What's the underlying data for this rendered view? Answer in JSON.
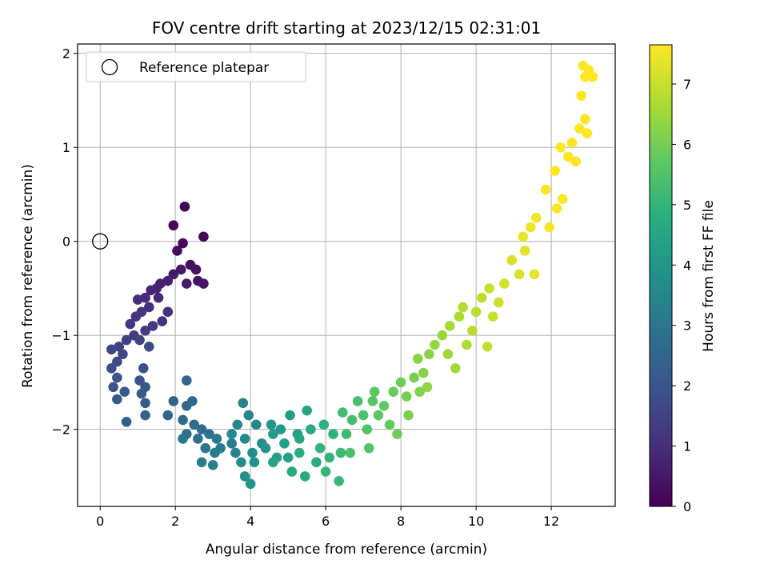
{
  "chart_data": {
    "type": "scatter",
    "title": "FOV centre drift starting at 2023/12/15 02:31:01",
    "xlabel": "Angular distance from reference (arcmin)",
    "ylabel": "Rotation from reference (arcmin)",
    "xlim": [
      -0.6,
      13.7
    ],
    "ylim": [
      -2.82,
      2.1
    ],
    "xticks": [
      0,
      2,
      4,
      6,
      8,
      10,
      12
    ],
    "yticks": [
      -2,
      -1,
      0,
      1,
      2
    ],
    "xtick_labels": [
      "0",
      "2",
      "4",
      "6",
      "8",
      "10",
      "12"
    ],
    "ytick_labels": [
      "−2",
      "−1",
      "0",
      "1",
      "2"
    ],
    "grid": true,
    "colormap": "viridis",
    "colorbar": {
      "label": "Hours from first FF file",
      "range": [
        0,
        7.65
      ],
      "ticks": [
        0,
        1,
        2,
        3,
        4,
        5,
        6,
        7
      ],
      "tick_labels": [
        "0",
        "1",
        "2",
        "3",
        "4",
        "5",
        "6",
        "7"
      ]
    },
    "legend": {
      "position": "top-left",
      "entries": [
        {
          "label": "Reference platepar",
          "marker": "open-circle"
        }
      ]
    },
    "reference_point": {
      "x": 0,
      "y": 0
    },
    "series": [
      {
        "points": [
          [
            2.25,
            0.37,
            0.05
          ],
          [
            2.75,
            0.05,
            0.1
          ],
          [
            1.95,
            0.17,
            0.15
          ],
          [
            2.2,
            -0.02,
            0.2
          ],
          [
            2.05,
            -0.1,
            0.25
          ],
          [
            2.4,
            -0.25,
            0.3
          ],
          [
            2.55,
            -0.3,
            0.35
          ],
          [
            2.6,
            -0.42,
            0.4
          ],
          [
            2.75,
            -0.45,
            0.45
          ],
          [
            2.15,
            -0.3,
            0.5
          ],
          [
            1.95,
            -0.35,
            0.55
          ],
          [
            2.3,
            -0.45,
            0.6
          ],
          [
            1.8,
            -0.42,
            0.65
          ],
          [
            1.6,
            -0.45,
            0.7
          ],
          [
            1.5,
            -0.5,
            0.75
          ],
          [
            1.35,
            -0.52,
            0.8
          ],
          [
            1.55,
            -0.6,
            0.85
          ],
          [
            1.2,
            -0.6,
            0.9
          ],
          [
            1.0,
            -0.62,
            0.95
          ],
          [
            1.3,
            -0.7,
            1.0
          ],
          [
            1.8,
            -0.75,
            1.05
          ],
          [
            1.65,
            -0.85,
            1.1
          ],
          [
            1.1,
            -0.75,
            1.15
          ],
          [
            0.95,
            -0.8,
            1.2
          ],
          [
            0.8,
            -0.88,
            1.25
          ],
          [
            1.4,
            -0.9,
            1.3
          ],
          [
            1.2,
            -0.95,
            1.35
          ],
          [
            0.9,
            -1.0,
            1.4
          ],
          [
            0.7,
            -1.05,
            1.45
          ],
          [
            1.05,
            -1.05,
            1.5
          ],
          [
            0.5,
            -1.12,
            1.55
          ],
          [
            0.3,
            -1.15,
            1.6
          ],
          [
            0.6,
            -1.2,
            1.65
          ],
          [
            1.3,
            -1.12,
            1.7
          ],
          [
            0.45,
            -1.28,
            1.75
          ],
          [
            0.3,
            -1.35,
            1.8
          ],
          [
            1.15,
            -1.35,
            1.85
          ],
          [
            0.45,
            -1.45,
            1.9
          ],
          [
            1.05,
            -1.48,
            1.95
          ],
          [
            0.35,
            -1.55,
            2.0
          ],
          [
            1.2,
            -1.55,
            2.05
          ],
          [
            0.65,
            -1.6,
            2.1
          ],
          [
            0.45,
            -1.68,
            2.15
          ],
          [
            1.1,
            -1.62,
            2.2
          ],
          [
            1.2,
            -1.72,
            2.25
          ],
          [
            0.7,
            -1.92,
            2.3
          ],
          [
            1.2,
            -1.85,
            2.35
          ],
          [
            1.95,
            -1.7,
            2.4
          ],
          [
            1.8,
            -1.85,
            2.45
          ],
          [
            2.3,
            -1.48,
            2.5
          ],
          [
            2.3,
            -1.75,
            2.55
          ],
          [
            2.45,
            -1.7,
            2.6
          ],
          [
            2.2,
            -1.9,
            2.65
          ],
          [
            2.5,
            -1.95,
            2.7
          ],
          [
            2.7,
            -2.0,
            2.75
          ],
          [
            2.3,
            -2.05,
            2.8
          ],
          [
            2.6,
            -2.1,
            2.85
          ],
          [
            2.9,
            -2.05,
            2.9
          ],
          [
            2.2,
            -2.1,
            2.95
          ],
          [
            2.8,
            -2.2,
            3.0
          ],
          [
            3.1,
            -2.1,
            3.05
          ],
          [
            3.2,
            -2.2,
            3.1
          ],
          [
            3.5,
            -2.15,
            3.15
          ],
          [
            3.05,
            -2.25,
            3.2
          ],
          [
            2.7,
            -2.35,
            3.25
          ],
          [
            3.0,
            -2.38,
            3.3
          ],
          [
            3.6,
            -2.25,
            3.35
          ],
          [
            3.8,
            -1.72,
            3.4
          ],
          [
            3.95,
            -1.85,
            3.45
          ],
          [
            4.15,
            -1.95,
            3.5
          ],
          [
            3.65,
            -1.95,
            3.55
          ],
          [
            3.85,
            -2.1,
            3.6
          ],
          [
            3.5,
            -2.05,
            3.65
          ],
          [
            4.05,
            -2.25,
            3.7
          ],
          [
            4.3,
            -2.15,
            3.75
          ],
          [
            3.75,
            -2.35,
            3.8
          ],
          [
            4.1,
            -2.35,
            3.85
          ],
          [
            3.85,
            -2.5,
            3.9
          ],
          [
            4.0,
            -2.58,
            3.95
          ],
          [
            4.4,
            -2.2,
            4.0
          ],
          [
            4.55,
            -1.95,
            4.05
          ],
          [
            4.8,
            -2.0,
            4.1
          ],
          [
            5.05,
            -1.85,
            4.15
          ],
          [
            4.6,
            -2.05,
            4.2
          ],
          [
            4.9,
            -2.15,
            4.25
          ],
          [
            5.25,
            -2.05,
            4.3
          ],
          [
            4.7,
            -2.3,
            4.35
          ],
          [
            5.0,
            -2.3,
            4.4
          ],
          [
            4.6,
            -2.35,
            4.45
          ],
          [
            5.5,
            -1.8,
            4.5
          ],
          [
            5.3,
            -2.1,
            4.55
          ],
          [
            5.6,
            -2.0,
            4.6
          ],
          [
            5.1,
            -2.45,
            4.65
          ],
          [
            5.45,
            -2.5,
            4.7
          ],
          [
            5.75,
            -2.35,
            4.75
          ],
          [
            5.3,
            -2.25,
            4.8
          ],
          [
            5.95,
            -1.95,
            4.85
          ],
          [
            6.2,
            -2.05,
            4.9
          ],
          [
            5.85,
            -2.2,
            4.95
          ],
          [
            6.1,
            -2.3,
            5.0
          ],
          [
            6.0,
            -2.45,
            5.05
          ],
          [
            6.35,
            -2.55,
            5.1
          ],
          [
            6.4,
            -2.25,
            5.15
          ],
          [
            6.55,
            -2.05,
            5.2
          ],
          [
            6.45,
            -1.82,
            5.25
          ],
          [
            6.7,
            -1.9,
            5.3
          ],
          [
            6.85,
            -1.7,
            5.35
          ],
          [
            6.65,
            -2.25,
            5.4
          ],
          [
            7.0,
            -1.85,
            5.45
          ],
          [
            7.1,
            -2.0,
            5.5
          ],
          [
            7.15,
            -2.2,
            5.55
          ],
          [
            7.25,
            -1.7,
            5.6
          ],
          [
            7.4,
            -1.85,
            5.65
          ],
          [
            7.3,
            -1.6,
            5.7
          ],
          [
            7.55,
            -1.75,
            5.75
          ],
          [
            7.7,
            -1.95,
            5.8
          ],
          [
            7.8,
            -1.6,
            5.85
          ],
          [
            8.0,
            -1.5,
            5.9
          ],
          [
            7.9,
            -2.05,
            5.95
          ],
          [
            8.15,
            -1.65,
            6.0
          ],
          [
            8.35,
            -1.45,
            6.05
          ],
          [
            8.2,
            -1.85,
            6.1
          ],
          [
            8.5,
            -1.6,
            6.15
          ],
          [
            8.6,
            -1.4,
            6.2
          ],
          [
            8.45,
            -1.25,
            6.25
          ],
          [
            8.75,
            -1.2,
            6.3
          ],
          [
            8.7,
            -1.55,
            6.35
          ],
          [
            8.9,
            -1.1,
            6.4
          ],
          [
            9.1,
            -1.0,
            6.45
          ],
          [
            9.25,
            -1.2,
            6.5
          ],
          [
            9.45,
            -1.35,
            6.55
          ],
          [
            9.3,
            -0.9,
            6.6
          ],
          [
            9.55,
            -0.8,
            6.65
          ],
          [
            9.75,
            -1.1,
            6.7
          ],
          [
            9.65,
            -0.7,
            6.75
          ],
          [
            9.9,
            -0.95,
            6.8
          ],
          [
            10.0,
            -0.75,
            6.85
          ],
          [
            10.15,
            -0.6,
            6.9
          ],
          [
            10.3,
            -1.12,
            6.95
          ],
          [
            10.45,
            -0.8,
            7.0
          ],
          [
            10.35,
            -0.5,
            7.05
          ],
          [
            10.6,
            -0.65,
            7.1
          ],
          [
            10.75,
            -0.45,
            7.15
          ],
          [
            10.95,
            -0.2,
            7.2
          ],
          [
            11.15,
            -0.35,
            7.25
          ],
          [
            11.3,
            -0.1,
            7.3
          ],
          [
            11.55,
            -0.35,
            7.35
          ],
          [
            11.25,
            0.05,
            7.4
          ],
          [
            11.45,
            0.15,
            7.45
          ],
          [
            11.6,
            0.25,
            7.5
          ],
          [
            11.95,
            0.15,
            7.55
          ],
          [
            12.15,
            0.35,
            7.6
          ],
          [
            11.85,
            0.55,
            7.62
          ],
          [
            12.1,
            0.75,
            7.63
          ],
          [
            12.3,
            0.45,
            7.64
          ],
          [
            12.45,
            0.9,
            7.65
          ],
          [
            12.25,
            1.0,
            7.65
          ],
          [
            12.65,
            0.85,
            7.65
          ],
          [
            12.55,
            1.05,
            7.65
          ],
          [
            12.75,
            1.2,
            7.65
          ],
          [
            12.95,
            1.15,
            7.65
          ],
          [
            12.9,
            1.3,
            7.65
          ],
          [
            12.8,
            1.55,
            7.65
          ],
          [
            12.9,
            1.75,
            7.65
          ],
          [
            12.85,
            1.87,
            7.65
          ],
          [
            13.0,
            1.82,
            7.65
          ],
          [
            13.1,
            1.75,
            7.65
          ]
        ]
      }
    ]
  }
}
